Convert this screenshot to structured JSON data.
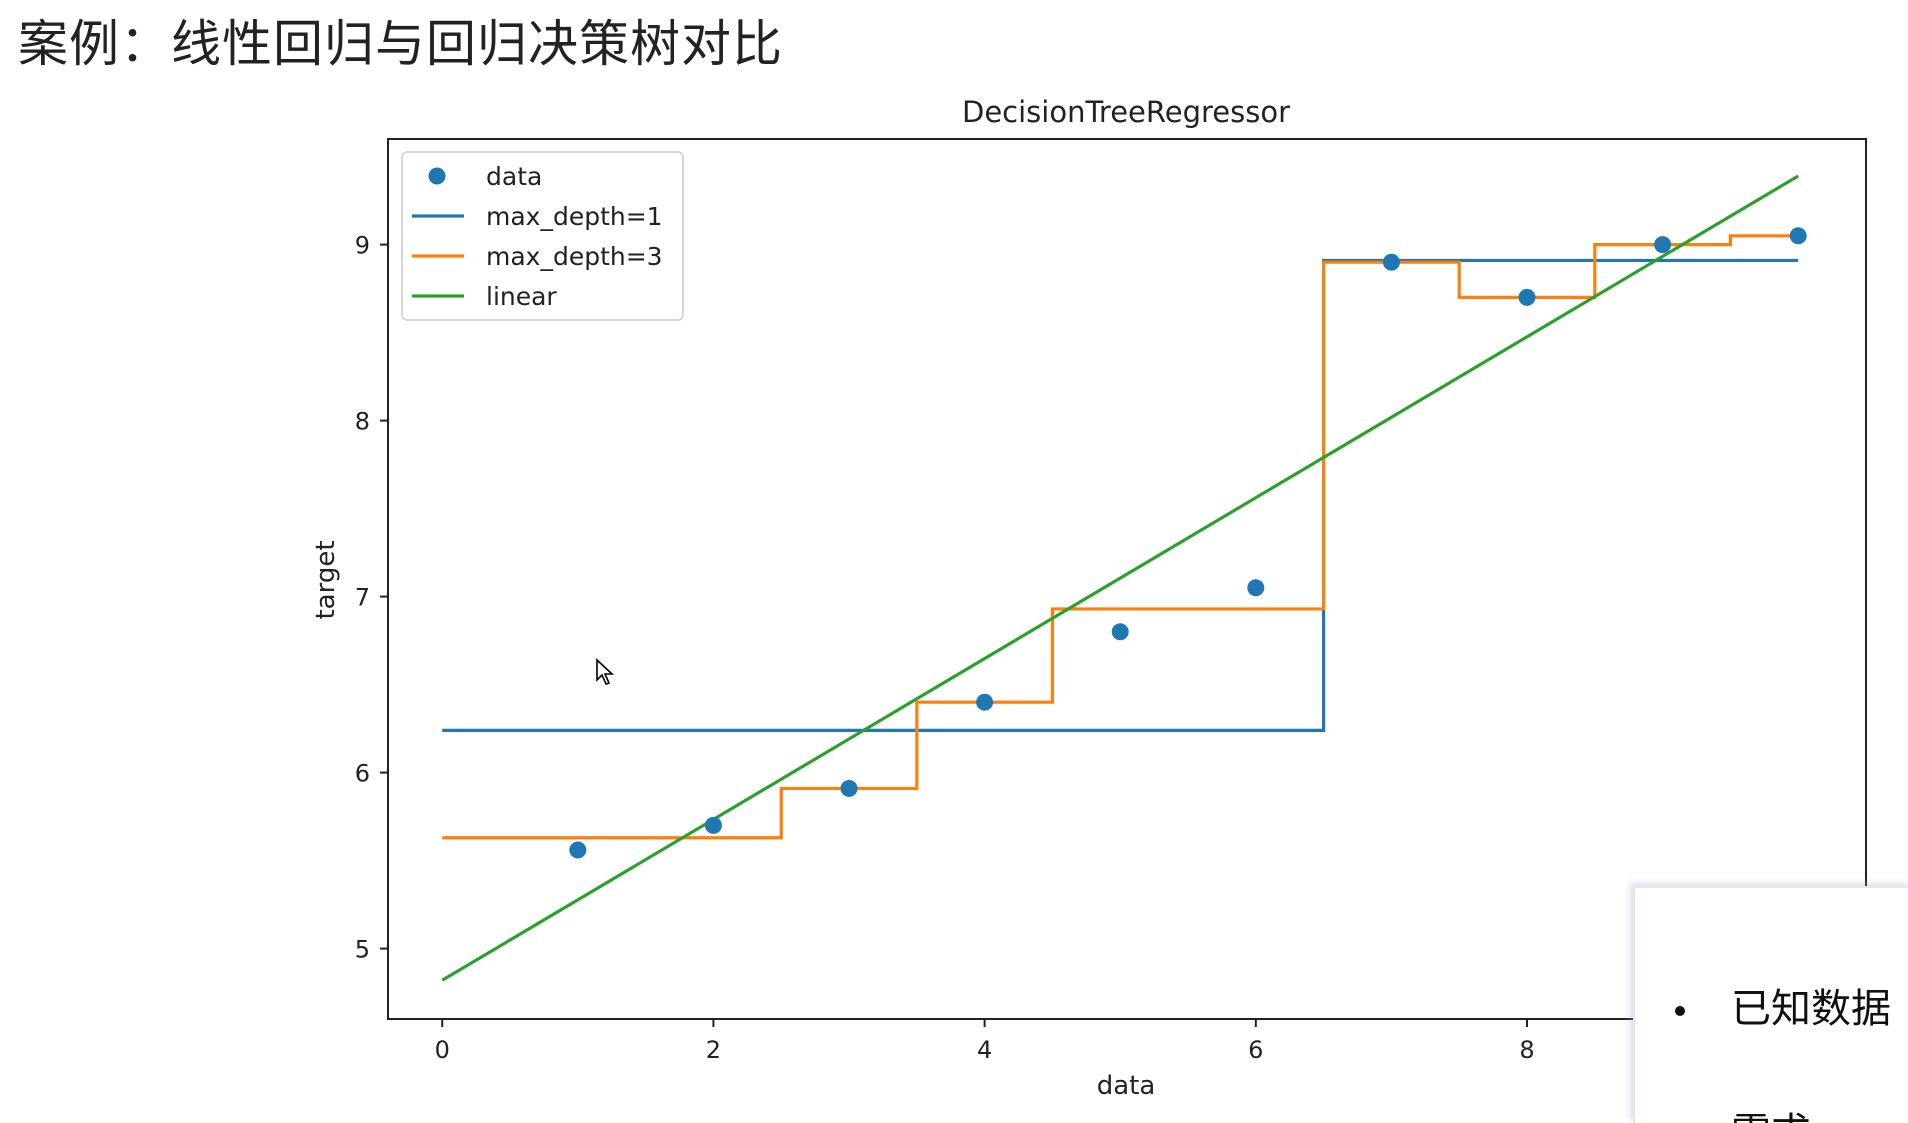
{
  "slide": {
    "title": "案例：线性回归与回归决策树对比"
  },
  "side_panel": {
    "items": [
      "已知数据",
      "需求"
    ]
  },
  "chart_data": {
    "type": "line",
    "title": "DecisionTreeRegressor",
    "xlabel": "data",
    "ylabel": "target",
    "xlim": [
      -0.4,
      10.5
    ],
    "ylim": [
      4.6,
      9.6
    ],
    "xticks": [
      0,
      2,
      4,
      6,
      8
    ],
    "yticks": [
      5,
      6,
      7,
      8,
      9
    ],
    "grid": false,
    "legend": {
      "placement": "top-left",
      "entries": [
        "data",
        "max_depth=1",
        "max_depth=3",
        "linear"
      ]
    },
    "series": [
      {
        "name": "data",
        "kind": "scatter",
        "color": "#1f77b4",
        "x": [
          1,
          2,
          3,
          4,
          5,
          6,
          7,
          8,
          9,
          10
        ],
        "y": [
          5.56,
          5.7,
          5.91,
          6.4,
          6.8,
          7.05,
          8.9,
          8.7,
          9.0,
          9.05
        ]
      },
      {
        "name": "max_depth=1",
        "kind": "step",
        "color": "#1f77b4",
        "x": [
          0.0,
          6.5,
          6.5,
          10.0
        ],
        "y": [
          6.24,
          6.24,
          8.91,
          8.91
        ]
      },
      {
        "name": "max_depth=3",
        "kind": "step",
        "color": "#ff7f0e",
        "x": [
          0.0,
          2.5,
          2.5,
          3.5,
          3.5,
          4.5,
          4.5,
          6.5,
          6.5,
          7.5,
          7.5,
          8.5,
          8.5,
          9.5,
          9.5,
          10.0
        ],
        "y": [
          5.63,
          5.63,
          5.91,
          5.91,
          6.4,
          6.4,
          6.93,
          6.93,
          8.9,
          8.9,
          8.7,
          8.7,
          9.0,
          9.0,
          9.05,
          9.05
        ]
      },
      {
        "name": "linear",
        "kind": "line",
        "color": "#2ca02c",
        "x": [
          0.0,
          10.0
        ],
        "y": [
          4.82,
          9.39
        ]
      }
    ]
  }
}
